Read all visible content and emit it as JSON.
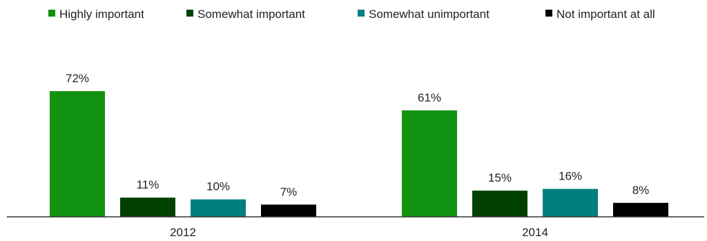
{
  "chart_data": {
    "type": "bar",
    "categories": [
      "2012",
      "2014"
    ],
    "series": [
      {
        "name": "Highly important",
        "values": [
          72,
          61
        ],
        "color": "#129211"
      },
      {
        "name": "Somewhat important",
        "values": [
          11,
          15
        ],
        "color": "#004100"
      },
      {
        "name": "Somewhat unimportant",
        "values": [
          10,
          16
        ],
        "color": "#007F80"
      },
      {
        "name": "Not important at all",
        "values": [
          7,
          8
        ],
        "color": "#000000"
      }
    ],
    "data_labels": [
      [
        "72%",
        "61%"
      ],
      [
        "11%",
        "15%"
      ],
      [
        "10%",
        "16%"
      ],
      [
        "7%",
        "8%"
      ]
    ],
    "unit": "%",
    "ylim": [
      0,
      80
    ],
    "grid": false,
    "legend_position": "top",
    "title": "",
    "xlabel": "",
    "ylabel": ""
  }
}
